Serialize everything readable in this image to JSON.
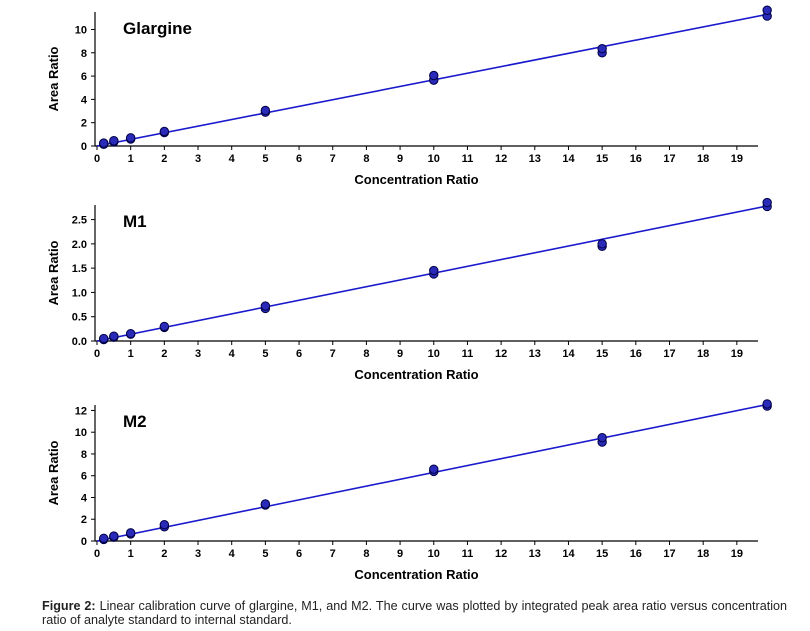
{
  "chart_data": [
    {
      "type": "scatter",
      "title": "Glargine",
      "xlabel": "Concentration Ratio",
      "ylabel": "Area Ratio",
      "x_positions": [
        0,
        0.2,
        0.5,
        1,
        2,
        5,
        10,
        15,
        20
      ],
      "xtick_labels": [
        "0",
        "1",
        "2",
        "3",
        "4",
        "5",
        "6",
        "7",
        "8",
        "9",
        "10",
        "11",
        "12",
        "13",
        "14",
        "15",
        "16",
        "17",
        "18",
        "19"
      ],
      "xlim": [
        0,
        20
      ],
      "ylim": [
        0,
        11.5
      ],
      "yticks": [
        0,
        2,
        4,
        6,
        8,
        10
      ],
      "ytick_labels": [
        "0",
        "2",
        "4",
        "6",
        "8",
        "10"
      ],
      "points": {
        "x": [
          0.2,
          0.2,
          0.5,
          0.5,
          1,
          1,
          2,
          2,
          5,
          5,
          10,
          10,
          15,
          15,
          20,
          20
        ],
        "y": [
          0.15,
          0.25,
          0.35,
          0.45,
          0.6,
          0.7,
          1.15,
          1.25,
          2.9,
          3.05,
          5.65,
          6.05,
          8.0,
          8.35,
          11.15,
          11.65
        ]
      },
      "fit_line": {
        "x": [
          0,
          20
        ],
        "y": [
          0.0,
          11.3
        ]
      }
    },
    {
      "type": "scatter",
      "title": "M1",
      "xlabel": "Concentration Ratio",
      "ylabel": "Area Ratio",
      "x_positions": [
        0,
        0.2,
        0.5,
        1,
        2,
        5,
        10,
        15,
        20
      ],
      "xtick_labels": [
        "0",
        "1",
        "2",
        "3",
        "4",
        "5",
        "6",
        "7",
        "8",
        "9",
        "10",
        "11",
        "12",
        "13",
        "14",
        "15",
        "16",
        "17",
        "18",
        "19"
      ],
      "xlim": [
        0,
        20
      ],
      "ylim": [
        0,
        2.8
      ],
      "yticks": [
        0,
        0.5,
        1.0,
        1.5,
        2.0,
        2.5
      ],
      "ytick_labels": [
        "0.0",
        "0.5",
        "1.0",
        "1.5",
        "2.0",
        "2.5"
      ],
      "points": {
        "x": [
          0.2,
          0.2,
          0.5,
          0.5,
          1,
          1,
          2,
          2,
          5,
          5,
          10,
          10,
          15,
          15,
          20,
          20
        ],
        "y": [
          0.03,
          0.05,
          0.08,
          0.1,
          0.14,
          0.15,
          0.28,
          0.3,
          0.67,
          0.72,
          1.38,
          1.45,
          1.95,
          2.0,
          2.77,
          2.85
        ]
      },
      "fit_line": {
        "x": [
          0,
          20
        ],
        "y": [
          0.0,
          2.78
        ]
      }
    },
    {
      "type": "scatter",
      "title": "M2",
      "xlabel": "Concentration Ratio",
      "ylabel": "Area Ratio",
      "x_positions": [
        0,
        0.2,
        0.5,
        1,
        2,
        5,
        10,
        15,
        20
      ],
      "xtick_labels": [
        "0",
        "1",
        "2",
        "3",
        "4",
        "5",
        "6",
        "7",
        "8",
        "9",
        "10",
        "11",
        "12",
        "13",
        "14",
        "15",
        "16",
        "17",
        "18",
        "19"
      ],
      "xlim": [
        0,
        20
      ],
      "ylim": [
        0,
        12.5
      ],
      "yticks": [
        0,
        2,
        4,
        6,
        8,
        10,
        12
      ],
      "ytick_labels": [
        "0",
        "2",
        "4",
        "6",
        "8",
        "10",
        "12"
      ],
      "points": {
        "x": [
          0.2,
          0.2,
          0.5,
          0.5,
          1,
          1,
          2,
          2,
          5,
          5,
          10,
          10,
          15,
          15,
          20,
          20
        ],
        "y": [
          0.15,
          0.25,
          0.35,
          0.45,
          0.65,
          0.75,
          1.3,
          1.5,
          3.3,
          3.4,
          6.4,
          6.6,
          9.1,
          9.5,
          12.4,
          12.6
        ]
      },
      "fit_line": {
        "x": [
          0,
          20
        ],
        "y": [
          0.0,
          12.55
        ]
      }
    }
  ],
  "caption": {
    "label": "Figure 2:",
    "text": "Linear calibration curve of glargine, M1, and M2. The curve was plotted by integrated peak area ratio versus concentration ratio of analyte standard to internal standard."
  },
  "colors": {
    "line": "#1a1acc",
    "marker_fill": "#2a2ab8",
    "marker_edge": "#000044",
    "axis": "#000000"
  }
}
